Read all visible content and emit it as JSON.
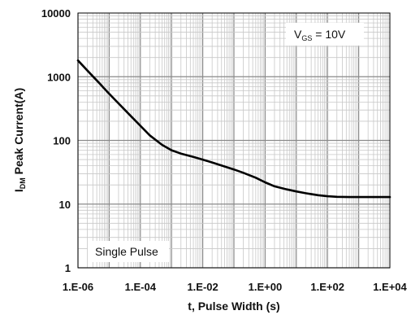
{
  "chart_data": {
    "type": "line",
    "xlabel": "t, Pulse Width (s)",
    "ylabel_main": "I",
    "ylabel_sub": "DM",
    "ylabel_rest": " Peak Current(A)",
    "x_scale": "log",
    "y_scale": "log",
    "xlim": [
      1e-06,
      10000
    ],
    "ylim": [
      1,
      10000
    ],
    "grid": true,
    "x_ticks": [
      {
        "value": 1e-06,
        "label": "1.E-06"
      },
      {
        "value": 0.0001,
        "label": "1.E-04"
      },
      {
        "value": 0.01,
        "label": "1.E-02"
      },
      {
        "value": 1,
        "label": "1.E+00"
      },
      {
        "value": 100,
        "label": "1.E+02"
      },
      {
        "value": 10000,
        "label": "1.E+04"
      }
    ],
    "y_ticks": [
      {
        "value": 1,
        "label": "1"
      },
      {
        "value": 10,
        "label": "10"
      },
      {
        "value": 100,
        "label": "100"
      },
      {
        "value": 1000,
        "label": "1000"
      },
      {
        "value": 10000,
        "label": "10000"
      }
    ],
    "annotations": {
      "vgs_main": "V",
      "vgs_sub": "GS",
      "vgs_rest": " = 10V",
      "pulse": "Single Pulse"
    },
    "series": [
      {
        "x": [
          1e-06,
          2e-06,
          5e-06,
          1e-05,
          2e-05,
          5e-05,
          0.0001,
          0.0002,
          0.0005,
          0.001,
          0.002,
          0.005,
          0.01,
          0.02,
          0.05,
          0.1,
          0.2,
          0.5,
          1,
          2,
          5,
          10,
          20,
          50,
          100,
          200,
          500,
          1000,
          10000
        ],
        "y": [
          1800,
          1250,
          780,
          540,
          380,
          240,
          170,
          120,
          85,
          70,
          62,
          55,
          50,
          45,
          39,
          35,
          31,
          26,
          22,
          19,
          17,
          15.8,
          14.8,
          13.8,
          13.3,
          13.0,
          12.9,
          12.9,
          12.9
        ]
      }
    ]
  }
}
